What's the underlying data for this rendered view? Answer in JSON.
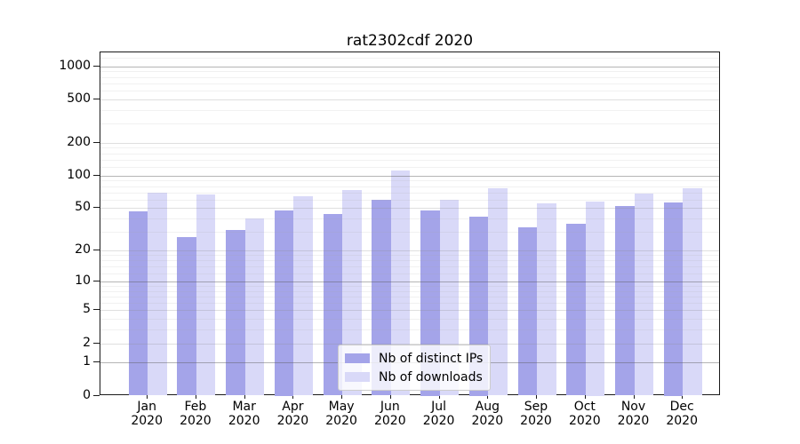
{
  "title": "rat2302cdf 2020",
  "colors": {
    "bar_distinct_ips": "#a4a4e9",
    "bar_downloads": "#d9d9f8",
    "grid_major": "rgba(90,90,90,0.45)",
    "grid_mid": "rgba(140,140,140,0.28)",
    "grid_minor": "rgba(165,165,165,0.16)",
    "spine": "#1a1a1a",
    "background": "#ffffff"
  },
  "chart_data": {
    "type": "bar",
    "title": "rat2302cdf 2020",
    "categories": [
      "Jan",
      "Feb",
      "Mar",
      "Apr",
      "May",
      "Jun",
      "Jul",
      "Aug",
      "Sep",
      "Oct",
      "Nov",
      "Dec"
    ],
    "year_label": "2020",
    "series": [
      {
        "name": "Nb of distinct IPs",
        "color": "#a4a4e9",
        "values": [
          47,
          27,
          31,
          48,
          44,
          60,
          48,
          42,
          33,
          36,
          52,
          57
        ]
      },
      {
        "name": "Nb of downloads",
        "color": "#d9d9f8",
        "values": [
          70,
          67,
          40,
          64,
          73,
          112,
          60,
          76,
          55,
          58,
          68,
          76
        ]
      }
    ],
    "yscale": "log1p",
    "yticks": [
      0,
      1,
      2,
      5,
      10,
      20,
      50,
      100,
      200,
      500,
      1000
    ],
    "ylim": [
      0,
      1335
    ],
    "grid": {
      "orientation": "horizontal",
      "major": [
        1,
        10,
        100,
        1000
      ],
      "mid": [
        2,
        5,
        20,
        50,
        200,
        500
      ],
      "minor": [
        3,
        4,
        6,
        7,
        8,
        9,
        12,
        14,
        16,
        18,
        30,
        40,
        60,
        70,
        80,
        90,
        120,
        140,
        160,
        180,
        300,
        400,
        600,
        700,
        800,
        900,
        1200
      ]
    },
    "legend_position": "lower center"
  }
}
